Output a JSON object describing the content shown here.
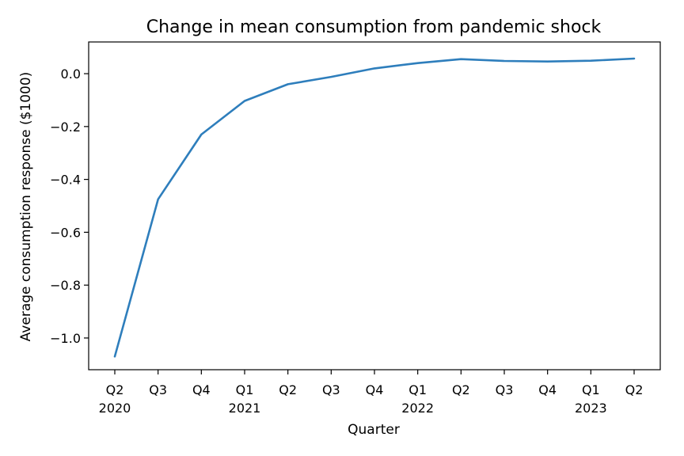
{
  "chart_data": {
    "type": "line",
    "title": "Change in mean consumption from pandemic shock",
    "xlabel": "Quarter",
    "ylabel": "Average consumption response ($1000)",
    "categories": [
      "Q2",
      "Q3",
      "Q4",
      "Q1",
      "Q2",
      "Q3",
      "Q4",
      "Q1",
      "Q2",
      "Q3",
      "Q4",
      "Q1",
      "Q2"
    ],
    "year_labels": [
      "2020",
      "",
      "",
      "2021",
      "",
      "",
      "",
      "2022",
      "",
      "",
      "",
      "2023",
      ""
    ],
    "series": [
      {
        "color": "#2e7ebc",
        "values": [
          -1.07,
          -0.475,
          -0.23,
          -0.103,
          -0.04,
          -0.012,
          0.02,
          0.04,
          0.055,
          0.048,
          0.046,
          0.049,
          0.057
        ]
      }
    ],
    "ylim": [
      -1.12,
      0.12
    ],
    "yticks": [
      0.0,
      -0.2,
      -0.4,
      -0.6,
      -0.8,
      -1.0
    ],
    "ytick_labels": [
      "0.0",
      "−0.2",
      "−0.4",
      "−0.6",
      "−0.8",
      "−1.0"
    ],
    "grid": false,
    "legend": "none"
  }
}
